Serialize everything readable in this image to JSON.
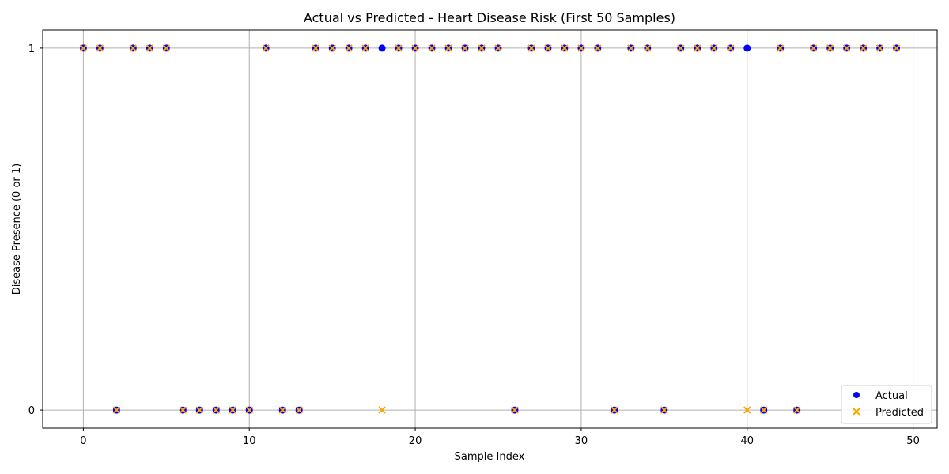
{
  "chart_data": {
    "type": "scatter",
    "title": "Actual vs Predicted - Heart Disease Risk (First 50 Samples)",
    "xlabel": "Sample Index",
    "ylabel": "Disease Presence (0 or 1)",
    "xlim": [
      -2.45,
      51.45
    ],
    "ylim": [
      -0.05,
      1.05
    ],
    "xticks": [
      0,
      10,
      20,
      30,
      40,
      50
    ],
    "yticks": [
      0,
      1
    ],
    "grid": true,
    "legend_position": "lower-right",
    "series": [
      {
        "name": "Actual",
        "marker": "circle",
        "color": "#0000ff",
        "x": [
          0,
          1,
          2,
          3,
          4,
          5,
          6,
          7,
          8,
          9,
          10,
          11,
          12,
          13,
          14,
          15,
          16,
          17,
          18,
          19,
          20,
          21,
          22,
          23,
          24,
          25,
          26,
          27,
          28,
          29,
          30,
          31,
          32,
          33,
          34,
          35,
          36,
          37,
          38,
          39,
          40,
          41,
          42,
          43,
          44,
          45,
          46,
          47,
          48,
          49
        ],
        "y": [
          1,
          1,
          0,
          1,
          1,
          1,
          0,
          0,
          0,
          0,
          0,
          1,
          0,
          0,
          1,
          1,
          1,
          1,
          1,
          1,
          1,
          1,
          1,
          1,
          1,
          1,
          0,
          1,
          1,
          1,
          1,
          1,
          0,
          1,
          1,
          0,
          1,
          1,
          1,
          1,
          1,
          0,
          1,
          0,
          1,
          1,
          1,
          1,
          1,
          1
        ]
      },
      {
        "name": "Predicted",
        "marker": "x",
        "color": "#ffa500",
        "x": [
          0,
          1,
          2,
          3,
          4,
          5,
          6,
          7,
          8,
          9,
          10,
          11,
          12,
          13,
          14,
          15,
          16,
          17,
          18,
          19,
          20,
          21,
          22,
          23,
          24,
          25,
          26,
          27,
          28,
          29,
          30,
          31,
          32,
          33,
          34,
          35,
          36,
          37,
          38,
          39,
          40,
          41,
          42,
          43,
          44,
          45,
          46,
          47,
          48,
          49
        ],
        "y": [
          1,
          1,
          0,
          1,
          1,
          1,
          0,
          0,
          0,
          0,
          0,
          1,
          0,
          0,
          1,
          1,
          1,
          1,
          0,
          1,
          1,
          1,
          1,
          1,
          1,
          1,
          0,
          1,
          1,
          1,
          1,
          1,
          0,
          1,
          1,
          0,
          1,
          1,
          1,
          1,
          0,
          0,
          1,
          0,
          1,
          1,
          1,
          1,
          1,
          1
        ]
      }
    ]
  }
}
